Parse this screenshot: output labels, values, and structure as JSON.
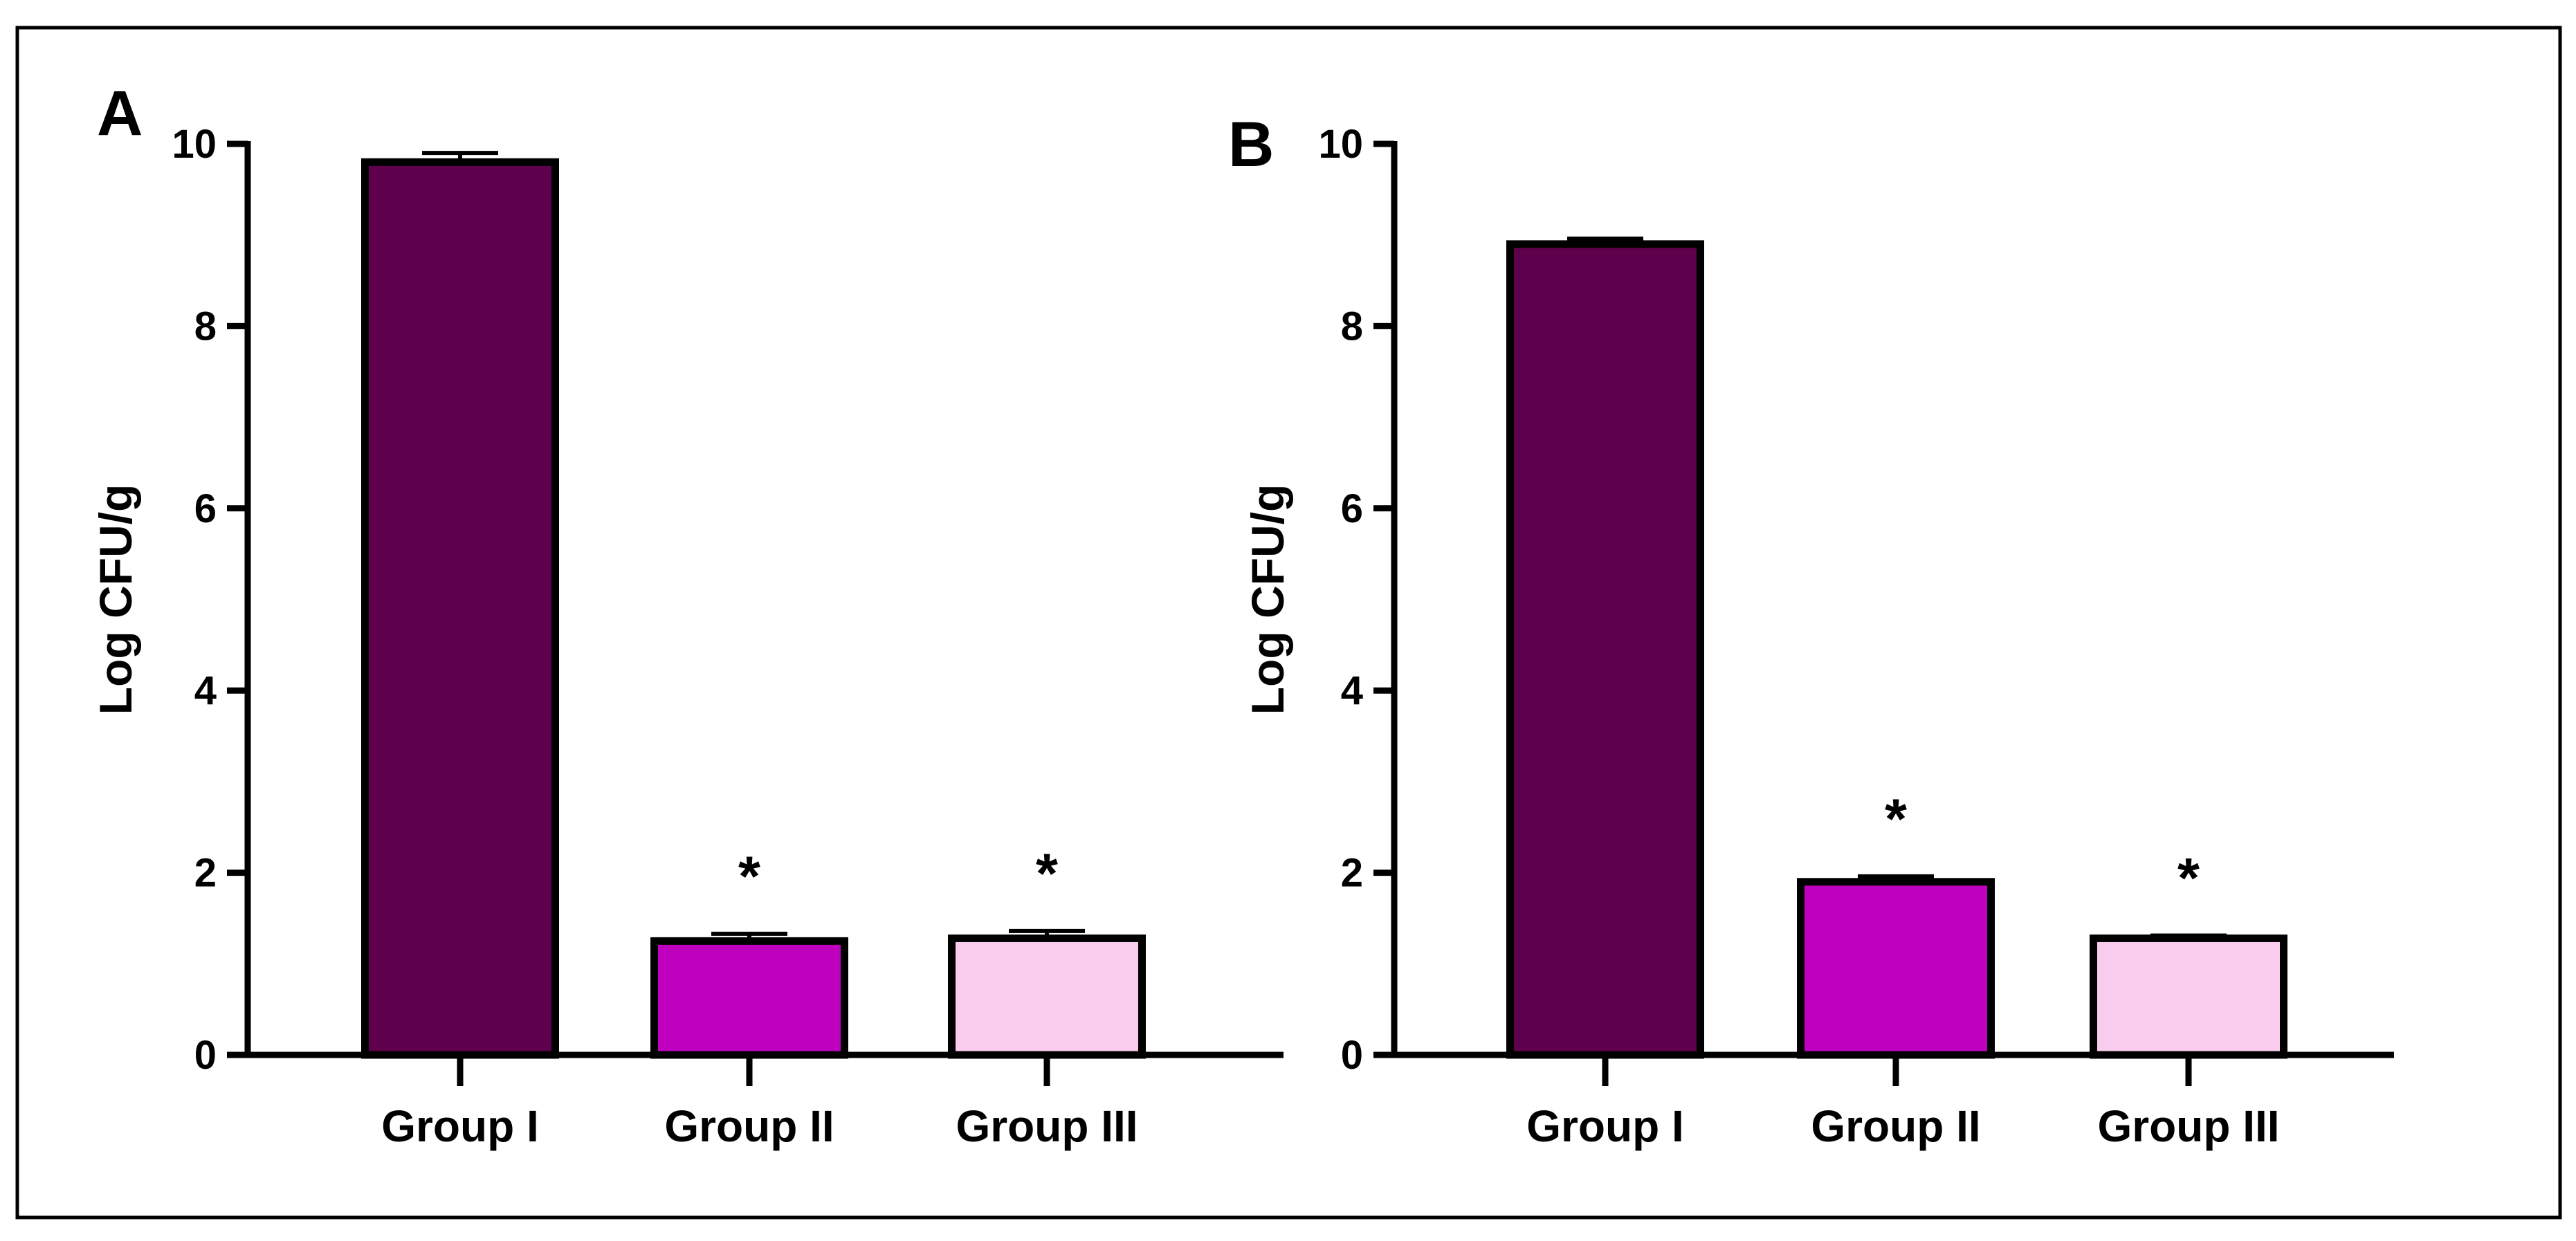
{
  "figure_title": "Log CFU/g by group, panels A and B",
  "colors": {
    "Group I": "#5E004B",
    "Group II": "#BF00BF",
    "Group III": "#F9CCEE",
    "axis": "#000000"
  },
  "chart_data": [
    {
      "type": "bar",
      "panel": "A",
      "title": "",
      "xlabel": "",
      "ylabel": "Log CFU/g",
      "ylim": [
        0,
        10
      ],
      "yticks": [
        0,
        2,
        4,
        6,
        8,
        10
      ],
      "categories": [
        "Group I",
        "Group II",
        "Group III"
      ],
      "values": [
        9.8,
        1.25,
        1.28
      ],
      "errors": [
        0.1,
        0.08,
        0.08
      ],
      "annotations": [
        "",
        "*",
        "*"
      ]
    },
    {
      "type": "bar",
      "panel": "B",
      "title": "",
      "xlabel": "",
      "ylabel": "Log CFU/g",
      "ylim": [
        0,
        10
      ],
      "yticks": [
        0,
        2,
        4,
        6,
        8,
        10
      ],
      "categories": [
        "Group I",
        "Group II",
        "Group III"
      ],
      "values": [
        8.9,
        1.9,
        1.28
      ],
      "errors": [
        0.06,
        0.06,
        0.03
      ],
      "annotations": [
        "",
        "*",
        "*"
      ]
    }
  ]
}
